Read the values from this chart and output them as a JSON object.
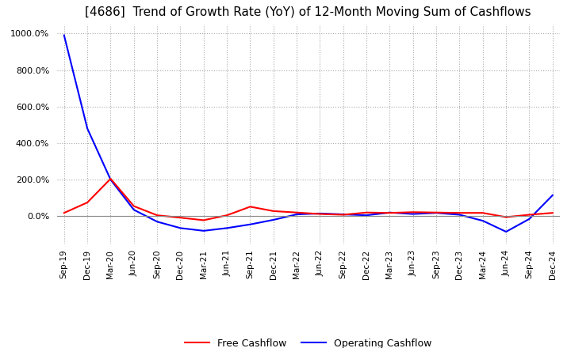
{
  "title": "[4686]  Trend of Growth Rate (YoY) of 12-Month Moving Sum of Cashflows",
  "title_fontsize": 11,
  "title_fontweight": "normal",
  "ylim": [
    -150,
    1050
  ],
  "yticks": [
    0,
    200,
    400,
    600,
    800,
    1000
  ],
  "ytick_labels": [
    "0.0%",
    "200.0%",
    "400.0%",
    "600.0%",
    "800.0%",
    "1000.0%"
  ],
  "background_color": "#ffffff",
  "plot_bg_color": "#ffffff",
  "grid_color": "#aaaaaa",
  "x_labels": [
    "Sep-19",
    "Dec-19",
    "Mar-20",
    "Jun-20",
    "Sep-20",
    "Dec-20",
    "Mar-21",
    "Jun-21",
    "Sep-21",
    "Dec-21",
    "Mar-22",
    "Jun-22",
    "Sep-22",
    "Dec-22",
    "Mar-23",
    "Jun-23",
    "Sep-23",
    "Dec-23",
    "Mar-24",
    "Jun-24",
    "Sep-24",
    "Dec-24"
  ],
  "operating_cashflow": [
    18,
    75,
    205,
    55,
    5,
    -8,
    -22,
    5,
    52,
    28,
    20,
    12,
    8,
    20,
    18,
    22,
    20,
    18,
    18,
    -5,
    8,
    18
  ],
  "free_cashflow": [
    990,
    480,
    200,
    35,
    -30,
    -65,
    -80,
    -65,
    -45,
    -20,
    10,
    15,
    10,
    5,
    20,
    12,
    18,
    8,
    -25,
    -85,
    -15,
    115
  ],
  "operating_color": "#ff0000",
  "free_color": "#0000ff",
  "line_width": 1.5,
  "legend_labels": [
    "Operating Cashflow",
    "Free Cashflow"
  ]
}
